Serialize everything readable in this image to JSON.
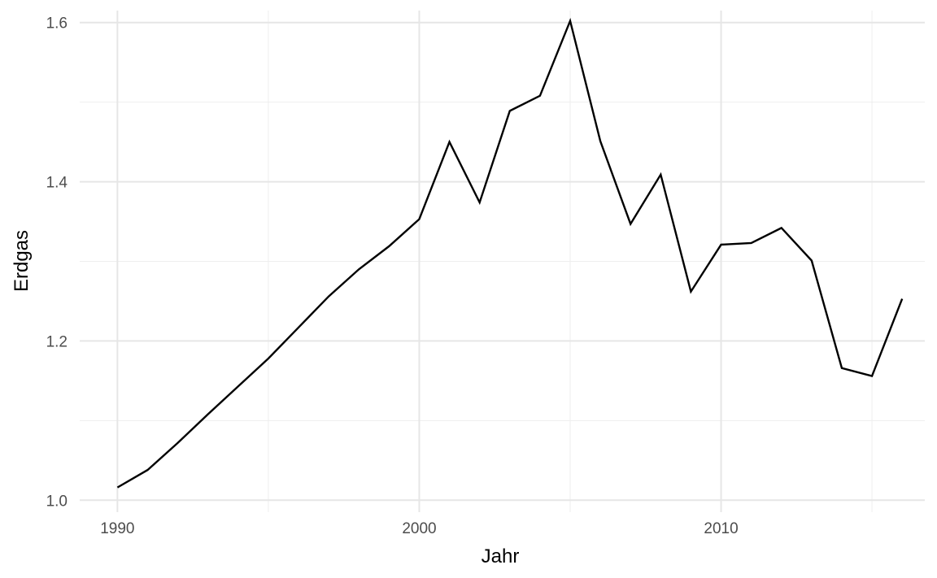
{
  "chart_data": {
    "type": "line",
    "title": "",
    "xlabel": "Jahr",
    "ylabel": "Erdgas",
    "xlim": [
      1988.75,
      2016.75
    ],
    "ylim": [
      0.985,
      1.615
    ],
    "x_ticks": [
      1990,
      2000,
      2010
    ],
    "x_tick_labels": [
      "1990",
      "2000",
      "2010"
    ],
    "x_minor_ticks": [
      1995,
      2005,
      2015
    ],
    "y_ticks": [
      1.0,
      1.2,
      1.4,
      1.6
    ],
    "y_tick_labels": [
      "1.0",
      "1.2",
      "1.4",
      "1.6"
    ],
    "y_minor_ticks": [
      1.1,
      1.3,
      1.5
    ],
    "grid": true,
    "line_color": "#000000",
    "x": [
      1990,
      1991,
      1992,
      1993,
      1994,
      1995,
      1996,
      1997,
      1998,
      1999,
      2000,
      2001,
      2002,
      2003,
      2004,
      2005,
      2006,
      2007,
      2008,
      2009,
      2010,
      2011,
      2012,
      2013,
      2014,
      2015,
      2016
    ],
    "y": [
      1.016,
      1.038,
      1.072,
      1.108,
      1.143,
      1.178,
      1.217,
      1.256,
      1.29,
      1.319,
      1.353,
      1.45,
      1.374,
      1.489,
      1.508,
      1.602,
      1.451,
      1.347,
      1.409,
      1.262,
      1.321,
      1.323,
      1.342,
      1.301,
      1.166,
      1.156,
      1.253
    ]
  }
}
